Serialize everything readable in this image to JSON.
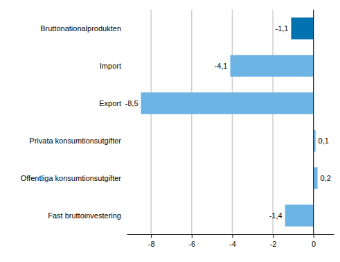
{
  "chart_data": {
    "type": "bar",
    "orientation": "horizontal",
    "categories": [
      "Bruttonationalprodukten",
      "Import",
      "Export",
      "Privata konsumtionsutgifter",
      "Offentliga konsumtionsutgifter",
      "Fast bruttoinvestering"
    ],
    "values": [
      -1.1,
      -4.1,
      -8.5,
      0.1,
      0.2,
      -1.4
    ],
    "value_labels": [
      "-1,1",
      "-4,1",
      "-8,5",
      "0,1",
      "0,2",
      "-1,4"
    ],
    "colors": [
      "#0073b0",
      "#6cb4e4",
      "#6cb4e4",
      "#6cb4e4",
      "#6cb4e4",
      "#6cb4e4"
    ],
    "xlim": [
      -9.2,
      1
    ],
    "xticks": [
      -8,
      -6,
      -4,
      -2,
      0
    ],
    "grid": true,
    "data_labels": true
  }
}
